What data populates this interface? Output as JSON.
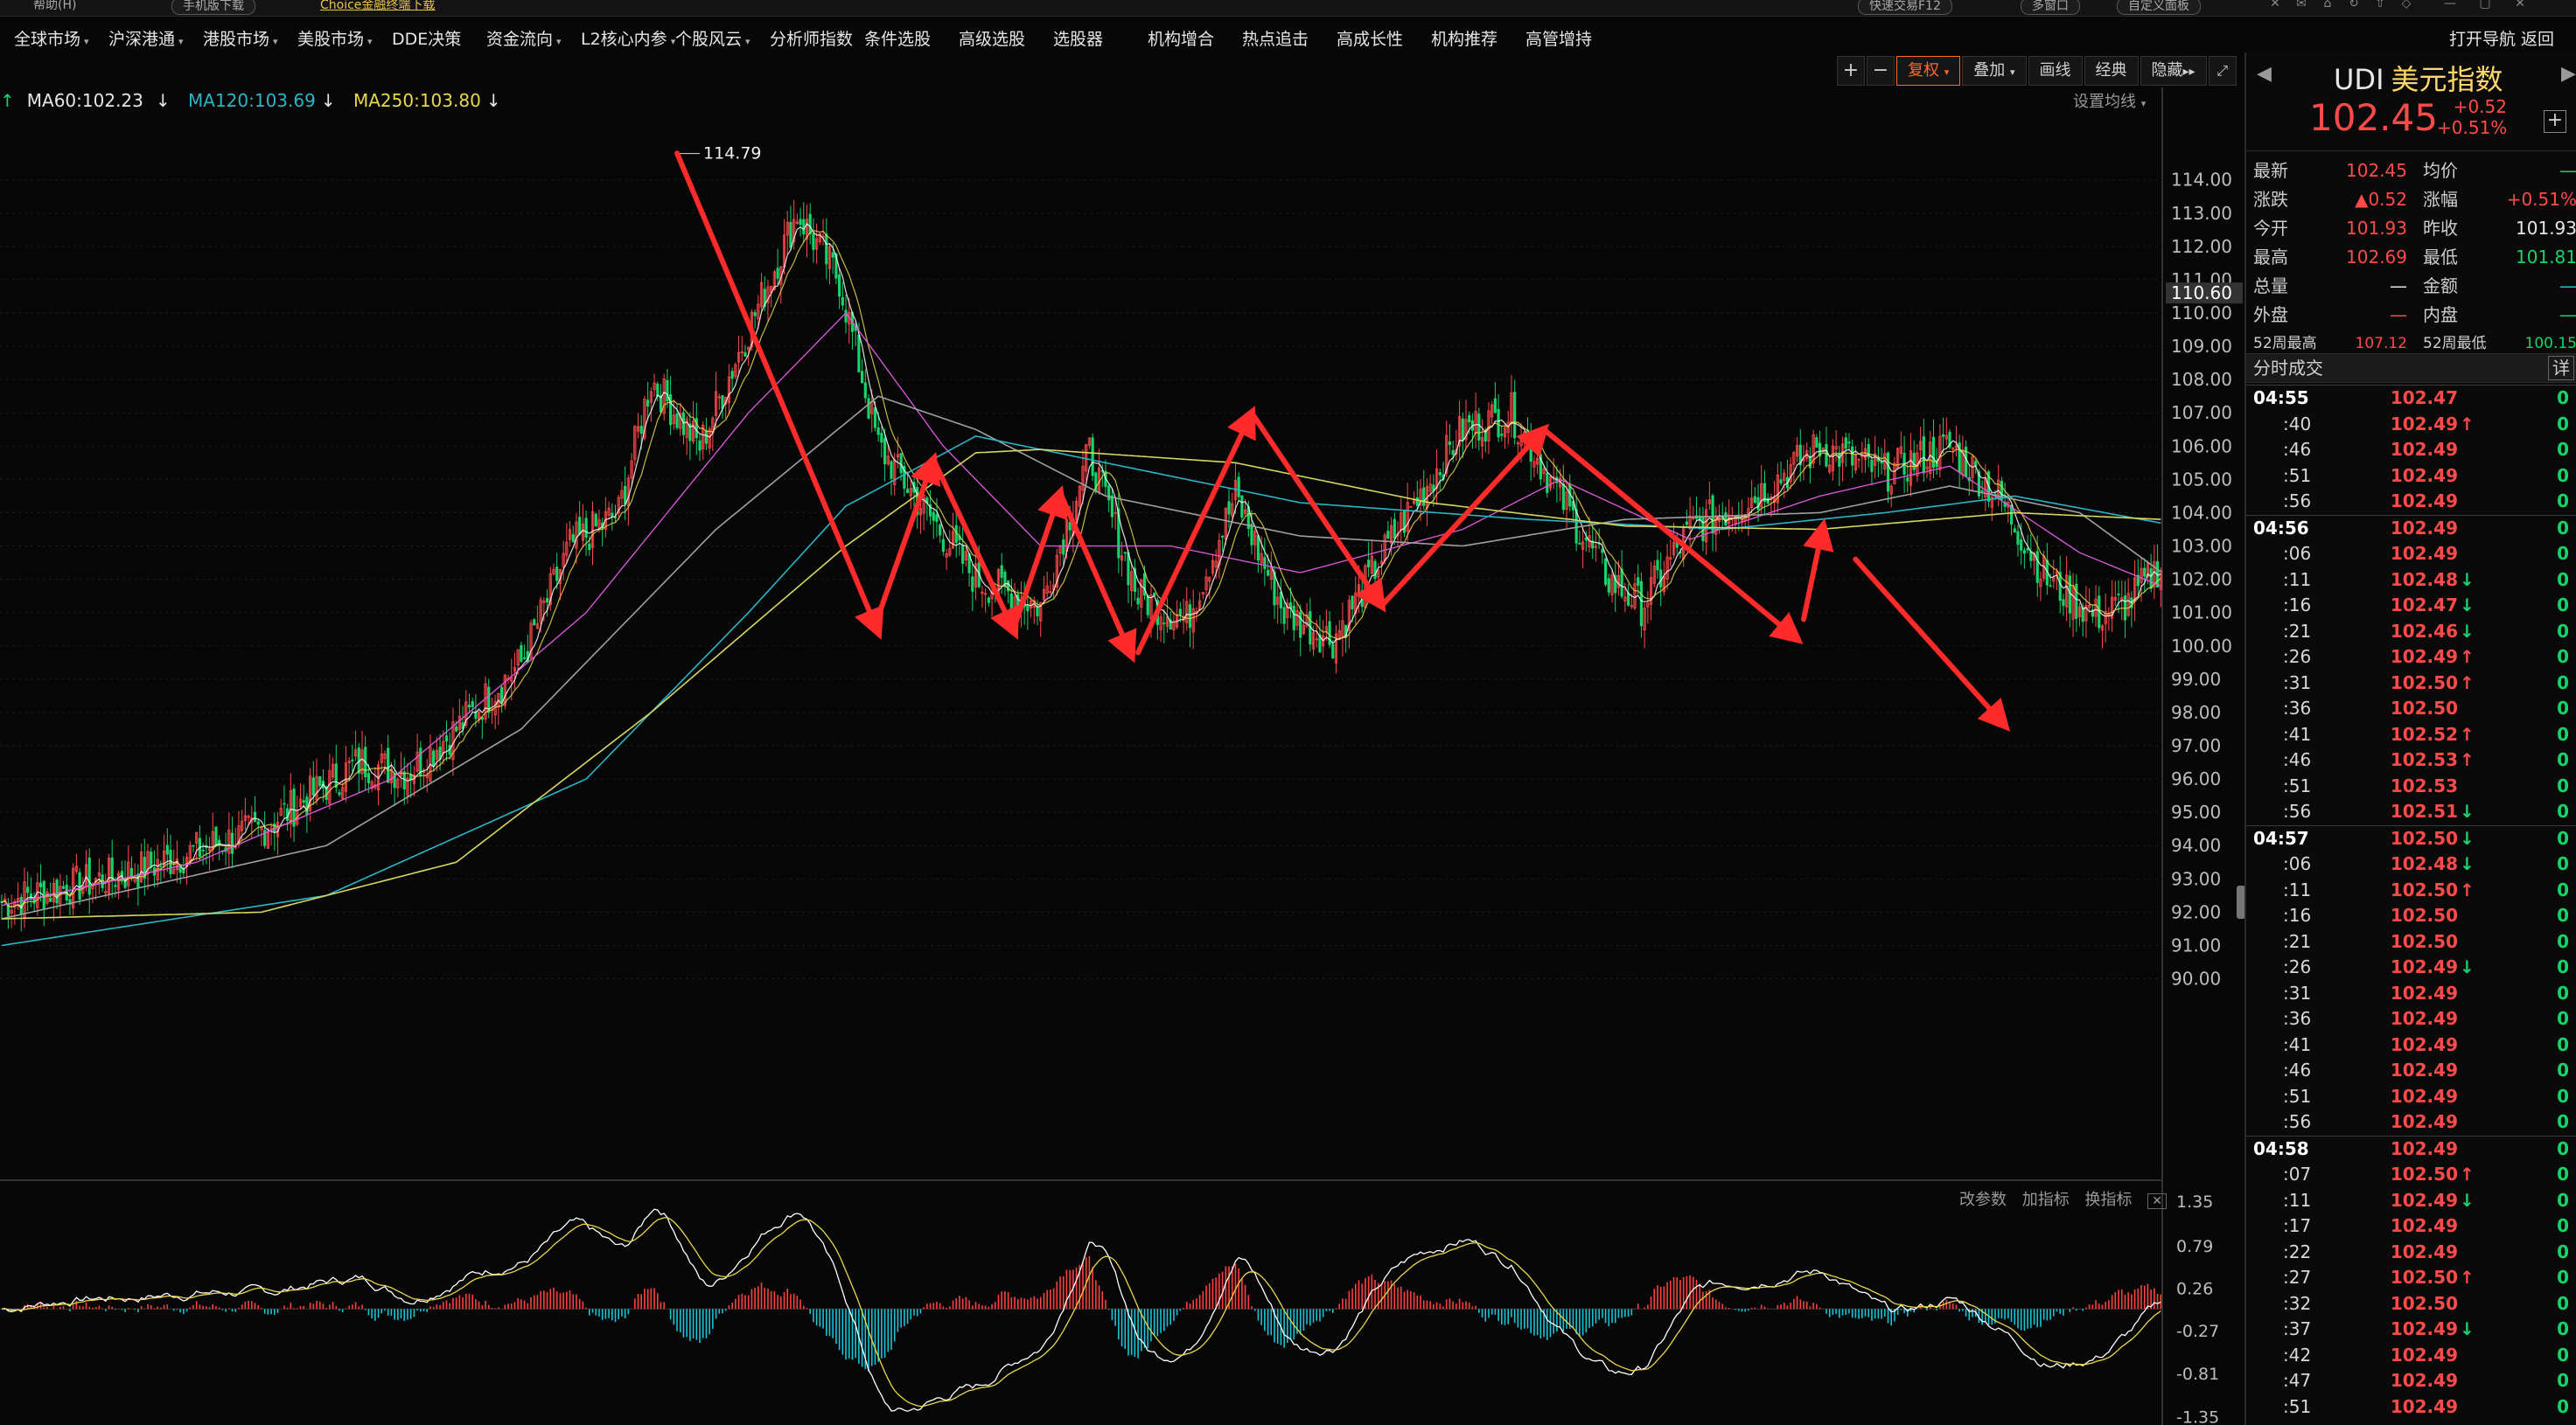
{
  "topbar": {
    "help": "帮助(H)",
    "mobile": "手机版下载",
    "choice": "Choice金融终端下载",
    "quicktrade": "快速交易F12",
    "multiwin": "多窗口",
    "custompanel": "自定义面板"
  },
  "menu": {
    "items": [
      "全球市场",
      "沪深港通",
      "港股市场",
      "美股市场",
      "DDE决策",
      "资金流向",
      "L2核心内参",
      "个股风云",
      "分析师指数",
      "条件选股",
      "高级选股",
      "选股器",
      "机构增合",
      "热点追击",
      "高成长性",
      "机构推荐",
      "高管增持"
    ],
    "right": [
      "打开导航",
      "返回"
    ]
  },
  "toolbar": {
    "plus": "+",
    "minus": "−",
    "fuquan": "复权",
    "overlay": "叠加",
    "draw": "画线",
    "classic": "经典",
    "hide": "隐藏"
  },
  "ma_legend": {
    "ma60": "MA60:102.23",
    "ma120": "MA120:103.69",
    "ma250": "MA250:103.80",
    "set_ma": "设置均线"
  },
  "indicator_tools": [
    "改参数",
    "加指标",
    "换指标"
  ],
  "colors": {
    "up": "#ff4a4a",
    "down": "#16d36a",
    "ma5": "#ffffff",
    "ma10": "#e8d84a",
    "ma20": "#e05ae0",
    "ma30": "#2ed35a",
    "ma60": "#a0a0a0",
    "ma120": "#2ab6c8",
    "ma250": "#d8d860",
    "annotation": "#ff2a2a",
    "macd_pos": "#ff4040",
    "macd_neg": "#17c6d8"
  },
  "chart_data": {
    "type": "candlestick",
    "price_axis_ticks": [
      "114.00",
      "113.00",
      "112.00",
      "111.00",
      "110.00",
      "109.00",
      "108.00",
      "107.00",
      "106.00",
      "105.00",
      "104.00",
      "103.00",
      "102.00",
      "101.00",
      "100.00",
      "99.00",
      "98.00",
      "97.00",
      "96.00",
      "95.00",
      "94.00",
      "93.00",
      "92.00",
      "91.00",
      "90.00"
    ],
    "ylim": [
      89.2,
      115.2
    ],
    "current_price_label": "110.60",
    "peak_label": "114.79",
    "macd_axis_ticks": [
      "1.35",
      "0.79",
      "0.26",
      "-0.27",
      "-0.81",
      "-1.35"
    ],
    "macd_ylim": [
      -1.4,
      1.45
    ],
    "close_anchors": [
      [
        0,
        92.3
      ],
      [
        40,
        93.2
      ],
      [
        80,
        94.5
      ],
      [
        110,
        96.5
      ],
      [
        125,
        96.2
      ],
      [
        140,
        97.5
      ],
      [
        160,
        99.5
      ],
      [
        175,
        103
      ],
      [
        190,
        104
      ],
      [
        200,
        108
      ],
      [
        215,
        106
      ],
      [
        230,
        109.5
      ],
      [
        245,
        113
      ],
      [
        258,
        111
      ],
      [
        270,
        106
      ],
      [
        285,
        104
      ],
      [
        300,
        102
      ],
      [
        320,
        101.2
      ],
      [
        335,
        105.8
      ],
      [
        350,
        101.5
      ],
      [
        365,
        100.8
      ],
      [
        380,
        104.5
      ],
      [
        395,
        101
      ],
      [
        410,
        100.2
      ],
      [
        430,
        103.5
      ],
      [
        450,
        106.5
      ],
      [
        465,
        107
      ],
      [
        480,
        104.5
      ],
      [
        495,
        102
      ],
      [
        505,
        101.2
      ],
      [
        520,
        103.5
      ],
      [
        540,
        104.5
      ],
      [
        560,
        106
      ],
      [
        580,
        105.2
      ],
      [
        600,
        106
      ],
      [
        615,
        104.5
      ],
      [
        630,
        102
      ],
      [
        645,
        100.9
      ],
      [
        655,
        101.3
      ],
      [
        665,
        102.45
      ]
    ],
    "ma_lines": {
      "ma20": [
        [
          0,
          92.2
        ],
        [
          60,
          93.5
        ],
        [
          120,
          96
        ],
        [
          180,
          101
        ],
        [
          230,
          107
        ],
        [
          260,
          110
        ],
        [
          290,
          106
        ],
        [
          320,
          103
        ],
        [
          360,
          103
        ],
        [
          400,
          102.2
        ],
        [
          450,
          103.5
        ],
        [
          480,
          105
        ],
        [
          520,
          103.2
        ],
        [
          560,
          104.5
        ],
        [
          600,
          105.4
        ],
        [
          640,
          102.8
        ],
        [
          665,
          101.8
        ]
      ],
      "ma60": [
        [
          0,
          91.8
        ],
        [
          100,
          94
        ],
        [
          160,
          97.5
        ],
        [
          220,
          103.5
        ],
        [
          270,
          107.5
        ],
        [
          300,
          106.5
        ],
        [
          340,
          104.5
        ],
        [
          400,
          103.3
        ],
        [
          450,
          103
        ],
        [
          500,
          103.8
        ],
        [
          560,
          104
        ],
        [
          600,
          104.8
        ],
        [
          640,
          104
        ],
        [
          665,
          102.23
        ]
      ],
      "ma120": [
        [
          0,
          91
        ],
        [
          100,
          92.5
        ],
        [
          180,
          96
        ],
        [
          230,
          101
        ],
        [
          260,
          104.2
        ],
        [
          300,
          106.3
        ],
        [
          340,
          105.5
        ],
        [
          400,
          104.3
        ],
        [
          470,
          103.8
        ],
        [
          530,
          103.5
        ],
        [
          580,
          104
        ],
        [
          620,
          104.5
        ],
        [
          665,
          103.69
        ]
      ],
      "ma250": [
        [
          0,
          91.8
        ],
        [
          80,
          92
        ],
        [
          140,
          93.5
        ],
        [
          200,
          98
        ],
        [
          260,
          103
        ],
        [
          300,
          105.8
        ],
        [
          320,
          105.9
        ],
        [
          380,
          105.5
        ],
        [
          440,
          104.3
        ],
        [
          500,
          103.6
        ],
        [
          560,
          103.5
        ],
        [
          620,
          104
        ],
        [
          665,
          103.8
        ]
      ]
    },
    "annotation_arrows": [
      [
        [
          208,
          114.8
        ],
        [
          270,
          100.4
        ]
      ],
      [
        [
          270,
          100.9
        ],
        [
          287,
          105.6
        ]
      ],
      [
        [
          287,
          105.6
        ],
        [
          312,
          100.4
        ]
      ],
      [
        [
          312,
          100.6
        ],
        [
          326,
          104.6
        ]
      ],
      [
        [
          326,
          104.6
        ],
        [
          348,
          99.7
        ]
      ],
      [
        [
          350,
          99.8
        ],
        [
          385,
          107
        ]
      ],
      [
        [
          385,
          107
        ],
        [
          425,
          101.2
        ]
      ],
      [
        [
          425,
          101.2
        ],
        [
          475,
          106.5
        ]
      ],
      [
        [
          475,
          106.5
        ],
        [
          553,
          100.2
        ]
      ],
      [
        [
          555,
          100.8
        ],
        [
          561,
          103.6
        ]
      ],
      [
        [
          571,
          102.6
        ],
        [
          617,
          97.6
        ]
      ]
    ]
  },
  "quote": {
    "code": "UDI",
    "name": "美元指数",
    "price": "102.45",
    "change": "+0.52",
    "change_pct": "+0.51%",
    "rows": [
      {
        "l1": "最新",
        "v1": "102.45",
        "c1": "red",
        "l2": "均价",
        "v2": "—",
        "c2": "green"
      },
      {
        "l1": "涨跌",
        "v1": "▲0.52",
        "c1": "red",
        "l2": "涨幅",
        "v2": "+0.51%",
        "c2": "red"
      },
      {
        "l1": "今开",
        "v1": "101.93",
        "c1": "red",
        "l2": "昨收",
        "v2": "101.93",
        "c2": "white"
      },
      {
        "l1": "最高",
        "v1": "102.69",
        "c1": "red",
        "l2": "最低",
        "v2": "101.81",
        "c2": "green"
      },
      {
        "l1": "总量",
        "v1": "—",
        "c1": "white",
        "l2": "金额",
        "v2": "—",
        "c2": "cyan"
      },
      {
        "l1": "外盘",
        "v1": "—",
        "c1": "red",
        "l2": "内盘",
        "v2": "—",
        "c2": "green"
      },
      {
        "l1": "52周最高",
        "v1": "107.12",
        "c1": "red",
        "l2": "52周最低",
        "v2": "100.15",
        "c2": "green"
      }
    ]
  },
  "ticks_header": {
    "title": "分时成交",
    "detail": "详"
  },
  "ticks": [
    {
      "t": "04:55",
      "p": "102.47",
      "a": "",
      "v": "0",
      "m": true
    },
    {
      "t": ":40",
      "p": "102.49",
      "a": "up",
      "v": "0"
    },
    {
      "t": ":46",
      "p": "102.49",
      "a": "",
      "v": "0"
    },
    {
      "t": ":51",
      "p": "102.49",
      "a": "",
      "v": "0"
    },
    {
      "t": ":56",
      "p": "102.49",
      "a": "",
      "v": "0"
    },
    {
      "t": "04:56",
      "p": "102.49",
      "a": "",
      "v": "0",
      "m": true
    },
    {
      "t": ":06",
      "p": "102.49",
      "a": "",
      "v": "0"
    },
    {
      "t": ":11",
      "p": "102.48",
      "a": "down",
      "v": "0"
    },
    {
      "t": ":16",
      "p": "102.47",
      "a": "down",
      "v": "0"
    },
    {
      "t": ":21",
      "p": "102.46",
      "a": "down",
      "v": "0"
    },
    {
      "t": ":26",
      "p": "102.49",
      "a": "up",
      "v": "0"
    },
    {
      "t": ":31",
      "p": "102.50",
      "a": "up",
      "v": "0"
    },
    {
      "t": ":36",
      "p": "102.50",
      "a": "",
      "v": "0"
    },
    {
      "t": ":41",
      "p": "102.52",
      "a": "up",
      "v": "0"
    },
    {
      "t": ":46",
      "p": "102.53",
      "a": "up",
      "v": "0"
    },
    {
      "t": ":51",
      "p": "102.53",
      "a": "",
      "v": "0"
    },
    {
      "t": ":56",
      "p": "102.51",
      "a": "down",
      "v": "0"
    },
    {
      "t": "04:57",
      "p": "102.50",
      "a": "down",
      "v": "0",
      "m": true
    },
    {
      "t": ":06",
      "p": "102.48",
      "a": "down",
      "v": "0"
    },
    {
      "t": ":11",
      "p": "102.50",
      "a": "up",
      "v": "0"
    },
    {
      "t": ":16",
      "p": "102.50",
      "a": "",
      "v": "0"
    },
    {
      "t": ":21",
      "p": "102.50",
      "a": "",
      "v": "0"
    },
    {
      "t": ":26",
      "p": "102.49",
      "a": "down",
      "v": "0"
    },
    {
      "t": ":31",
      "p": "102.49",
      "a": "",
      "v": "0"
    },
    {
      "t": ":36",
      "p": "102.49",
      "a": "",
      "v": "0"
    },
    {
      "t": ":41",
      "p": "102.49",
      "a": "",
      "v": "0"
    },
    {
      "t": ":46",
      "p": "102.49",
      "a": "",
      "v": "0"
    },
    {
      "t": ":51",
      "p": "102.49",
      "a": "",
      "v": "0"
    },
    {
      "t": ":56",
      "p": "102.49",
      "a": "",
      "v": "0"
    },
    {
      "t": "04:58",
      "p": "102.49",
      "a": "",
      "v": "0",
      "m": true
    },
    {
      "t": ":07",
      "p": "102.50",
      "a": "up",
      "v": "0"
    },
    {
      "t": ":11",
      "p": "102.49",
      "a": "down",
      "v": "0"
    },
    {
      "t": ":17",
      "p": "102.49",
      "a": "",
      "v": "0"
    },
    {
      "t": ":22",
      "p": "102.49",
      "a": "",
      "v": "0"
    },
    {
      "t": ":27",
      "p": "102.50",
      "a": "up",
      "v": "0"
    },
    {
      "t": ":32",
      "p": "102.50",
      "a": "",
      "v": "0"
    },
    {
      "t": ":37",
      "p": "102.49",
      "a": "down",
      "v": "0"
    },
    {
      "t": ":42",
      "p": "102.49",
      "a": "",
      "v": "0"
    },
    {
      "t": ":47",
      "p": "102.49",
      "a": "",
      "v": "0"
    },
    {
      "t": ":51",
      "p": "102.49",
      "a": "",
      "v": "0"
    }
  ]
}
